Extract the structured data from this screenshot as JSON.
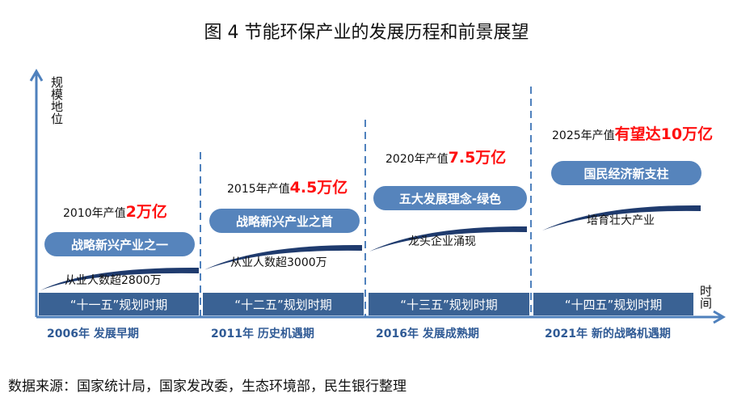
{
  "title": "图 4  节能环保产业的发展历程和前景展望",
  "axes": {
    "y_label": "规模地位",
    "x_label": "时间"
  },
  "colors": {
    "axis": "#4f81bd",
    "bar": "#3a6294",
    "pill": "#5684bc",
    "curve": "#1f3b6e",
    "highlight": "#ff1010",
    "period_text": "#2f5a95"
  },
  "stages": [
    {
      "plan": "“十一五”规划时期",
      "period": "2006年    发展早期",
      "pill": "战略新兴产业之一",
      "value_prefix": "2010年产值",
      "value_highlight": "2万亿",
      "curve_label": "从业人数超2800万"
    },
    {
      "plan": "“十二五”规划时期",
      "period": "2011年    历史机遇期",
      "pill": "战略新兴产业之首",
      "value_prefix": "2015年产值",
      "value_highlight": "4.5万亿",
      "curve_label": "从业人数超3000万"
    },
    {
      "plan": "“十三五”规划时期",
      "period": "2016年    发展成熟期",
      "pill": "五大发展理念-绿色",
      "value_prefix": "2020年产值",
      "value_highlight": "7.5万亿",
      "curve_label": "龙头企业涌现"
    },
    {
      "plan": "“十四五”规划时期",
      "period": "2021年    新的战略机遇期",
      "pill": "国民经济新支柱",
      "value_prefix": "2025年产值",
      "value_highlight": "有望达10万亿",
      "curve_label": "培育壮大产业"
    }
  ],
  "source": "数据来源：国家统计局，国家发改委，生态环境部，民生银行整理"
}
